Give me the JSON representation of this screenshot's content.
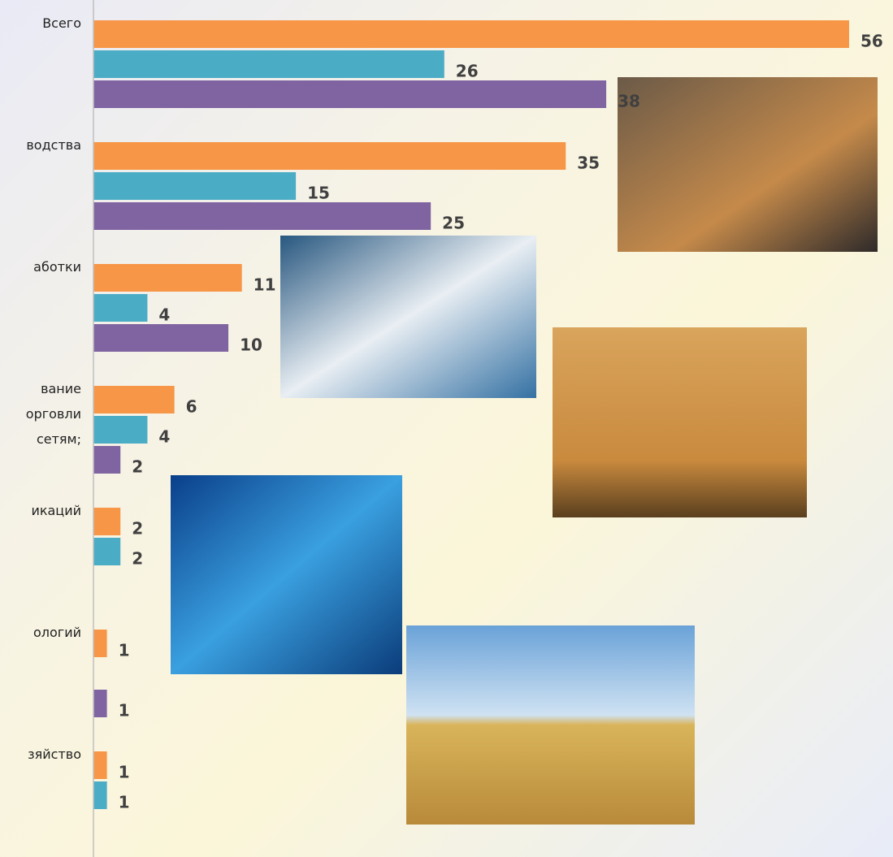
{
  "chart_data": {
    "type": "bar",
    "orientation": "horizontal",
    "categories": [
      "Всего",
      "водства",
      "аботки",
      "вание\nорговли\nсетям;",
      "икаций",
      "ологий",
      "зяйство"
    ],
    "series": [
      {
        "color": "#f79646",
        "values": [
          56,
          35,
          11,
          6,
          2,
          1,
          1
        ]
      },
      {
        "color": "#4bacc6",
        "values": [
          26,
          15,
          4,
          4,
          2,
          null,
          1
        ]
      },
      {
        "color": "#8064a2",
        "values": [
          38,
          25,
          10,
          2,
          null,
          1,
          null
        ]
      }
    ],
    "xlim": [
      0,
      56
    ]
  }
}
